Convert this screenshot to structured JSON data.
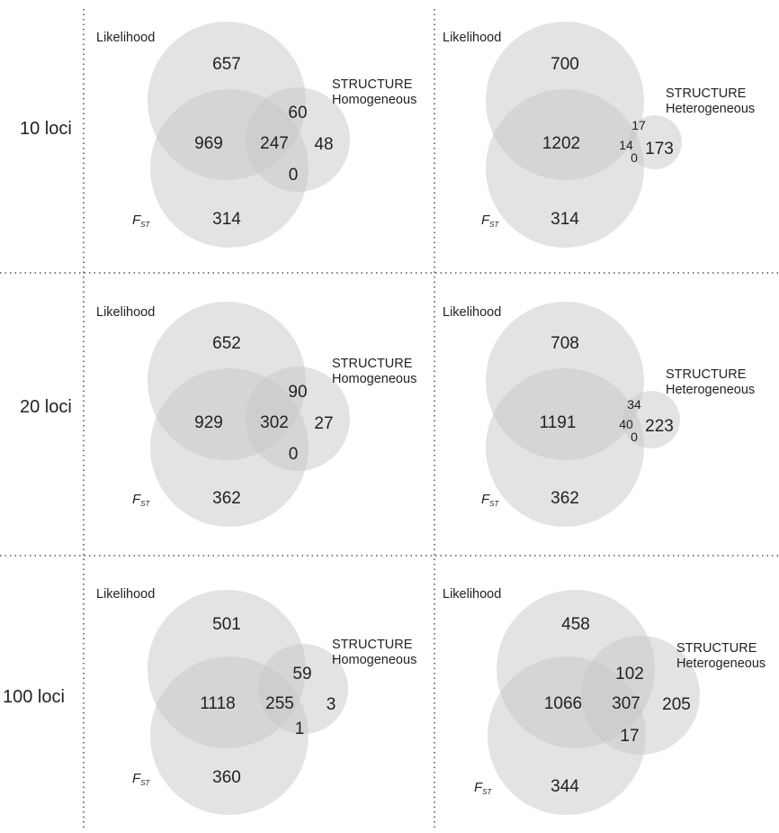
{
  "rows": [
    {
      "label": "10 loci"
    },
    {
      "label": "20 loci"
    },
    {
      "label": "100 loci"
    }
  ],
  "panels": [
    {
      "likelihood": "Likelihood",
      "fst": "F",
      "fst_sub": "ST",
      "structure": [
        "STRUCTURE",
        "Homogeneous"
      ],
      "values": {
        "lik_only": "657",
        "lik_fst": "969",
        "all_three": "247",
        "lik_str": "60",
        "str_only": "48",
        "fst_str": "0",
        "fst_only": "314"
      }
    },
    {
      "likelihood": "Likelihood",
      "fst": "F",
      "fst_sub": "ST",
      "structure": [
        "STRUCTURE",
        "Heterogeneous"
      ],
      "values": {
        "lik_only": "700",
        "lik_fst": "1202",
        "all_three": "14",
        "lik_str": "17",
        "str_only": "173",
        "fst_str": "0",
        "fst_only": "314"
      }
    },
    {
      "likelihood": "Likelihood",
      "fst": "F",
      "fst_sub": "ST",
      "structure": [
        "STRUCTURE",
        "Homogeneous"
      ],
      "values": {
        "lik_only": "652",
        "lik_fst": "929",
        "all_three": "302",
        "lik_str": "90",
        "str_only": "27",
        "fst_str": "0",
        "fst_only": "362"
      }
    },
    {
      "likelihood": "Likelihood",
      "fst": "F",
      "fst_sub": "ST",
      "structure": [
        "STRUCTURE",
        "Heterogeneous"
      ],
      "values": {
        "lik_only": "708",
        "lik_fst": "1191",
        "all_three": "40",
        "lik_str": "34",
        "str_only": "223",
        "fst_str": "0",
        "fst_only": "362"
      }
    },
    {
      "likelihood": "Likelihood",
      "fst": "F",
      "fst_sub": "ST",
      "structure": [
        "STRUCTURE",
        "Homogeneous"
      ],
      "values": {
        "lik_only": "501",
        "lik_fst": "1118",
        "all_three": "255",
        "lik_str": "59",
        "str_only": "3",
        "fst_str": "1",
        "fst_only": "360"
      }
    },
    {
      "likelihood": "Likelihood",
      "fst": "F",
      "fst_sub": "ST",
      "structure": [
        "STRUCTURE",
        "Heterogeneous"
      ],
      "values": {
        "lik_only": "458",
        "lik_fst": "1066",
        "all_three": "307",
        "lik_str": "102",
        "str_only": "205",
        "fst_str": "17",
        "fst_only": "344"
      }
    }
  ],
  "colors": {
    "circle_fill": "#c8c8c8",
    "divider": "#555555"
  }
}
